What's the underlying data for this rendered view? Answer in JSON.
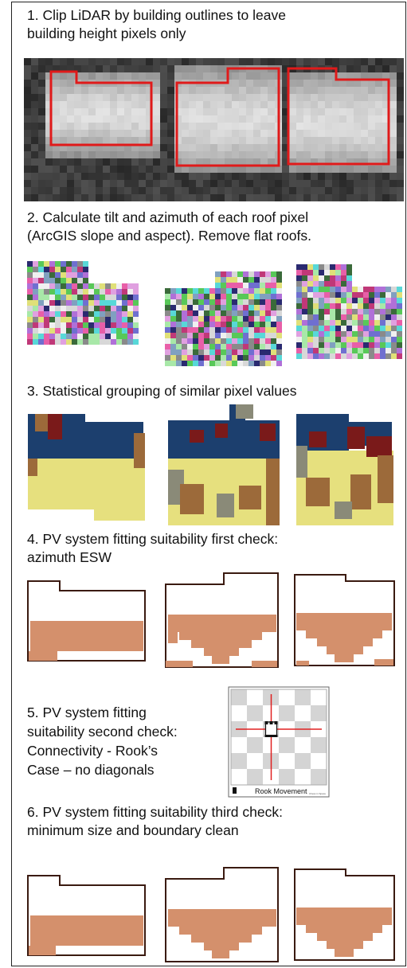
{
  "steps": [
    {
      "number": "1.",
      "text": "Clip LiDAR by building outlines to leave\nbuilding height pixels only"
    },
    {
      "number": "2.",
      "text": "Calculate tilt and azimuth of each roof pixel\n(ArcGIS slope and aspect). Remove flat roofs."
    },
    {
      "number": "3.",
      "text": "Statistical grouping of similar pixel values"
    },
    {
      "number": "4.",
      "text": "PV system fitting suitability first check:\nazimuth ESW"
    },
    {
      "number": "5.",
      "text": "PV system fitting\nsuitability second check:\nConnectivity - Rook’s\nCase  – no diagonals"
    },
    {
      "number": "6.",
      "text": "PV system fitting suitability third check:\nminimum size and boundary clean"
    }
  ],
  "rook_diagram": {
    "caption": "Rook Movement",
    "credit": "Chess in Space"
  },
  "colors": {
    "outline_red": "#e01a1a",
    "roof_tan": "#d4906c",
    "cluster_navy": "#1c3f6e",
    "cluster_yellow": "#e6e07e",
    "cluster_brown": "#9c6a3a",
    "cluster_maroon": "#7a1a1a",
    "cluster_gray": "#8a8a78",
    "outline_dark": "#3a1a10"
  },
  "palette_random": [
    "#6f6fd0",
    "#58c858",
    "#e85fa8",
    "#2a2a70",
    "#d8d8d8",
    "#a8e8a8",
    "#e0a0e0",
    "#58d8d8",
    "#8a8a8a",
    "#e0e078",
    "#c03878",
    "#f0f0f0",
    "#3a6a3a",
    "#b070d8",
    "#80a0c0"
  ]
}
